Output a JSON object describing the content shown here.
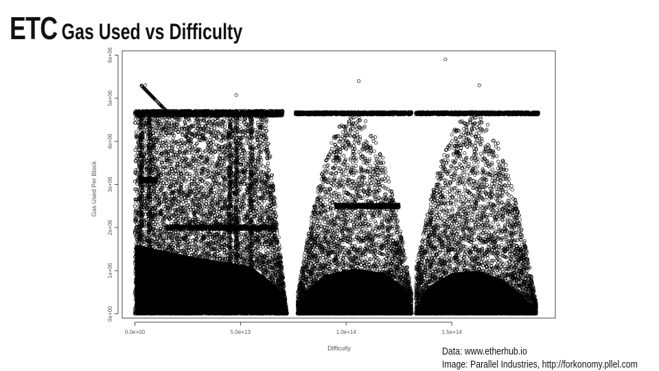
{
  "header": {
    "title": "ETC",
    "subtitle": "Gas Used vs Difficulty"
  },
  "credits": {
    "data_source": "Data: www.etherhub.io",
    "image_source": "Image: Parallel Industries, http://forkonomy.pllel.com"
  },
  "chart_data": {
    "type": "scatter",
    "xlabel": "Difficulty",
    "ylabel": "Gas Used Per Block",
    "xlim": [
      -6000000000000.0,
      199000000000000.0
    ],
    "ylim": [
      -100000.0,
      6100000.0
    ],
    "x_ticks": [
      0,
      50000000000000.0,
      100000000000000.0,
      150000000000000.0
    ],
    "x_tick_labels": [
      "0.0e+00",
      "5.0e+13",
      "1.0e+14",
      "1.5e+14"
    ],
    "y_ticks": [
      0,
      1000000.0,
      2000000.0,
      3000000.0,
      4000000.0,
      5000000.0,
      6000000.0
    ],
    "y_tick_labels": [
      "0e+00",
      "1e+06",
      "2e+06",
      "3e+06",
      "4e+06",
      "5e+06",
      "6e+06"
    ],
    "grid": false,
    "marker": "open-circle",
    "marker_color": "#000000",
    "clusters": [
      {
        "x_range": [
          0,
          72000000000000.0
        ],
        "note": "dense band from 0 to ~4.7e6 gas"
      },
      {
        "x_range": [
          77000000000000.0,
          131000000000000.0
        ],
        "note": "dense band, caps near 4.65e6"
      },
      {
        "x_range": [
          133000000000000.0,
          190000000000000.0
        ],
        "note": "dense band, caps near 4.65e6"
      }
    ],
    "gas_limit_line": 4650000.0,
    "outliers": [
      {
        "x": 147000000000000.0,
        "y": 5900000.0
      },
      {
        "x": 106000000000000.0,
        "y": 5400000.0
      },
      {
        "x": 163000000000000.0,
        "y": 5300000.0
      },
      {
        "x": 4900000000000.0,
        "y": 5300000.0
      },
      {
        "x": 48000000000000.0,
        "y": 5070000.0
      }
    ]
  }
}
